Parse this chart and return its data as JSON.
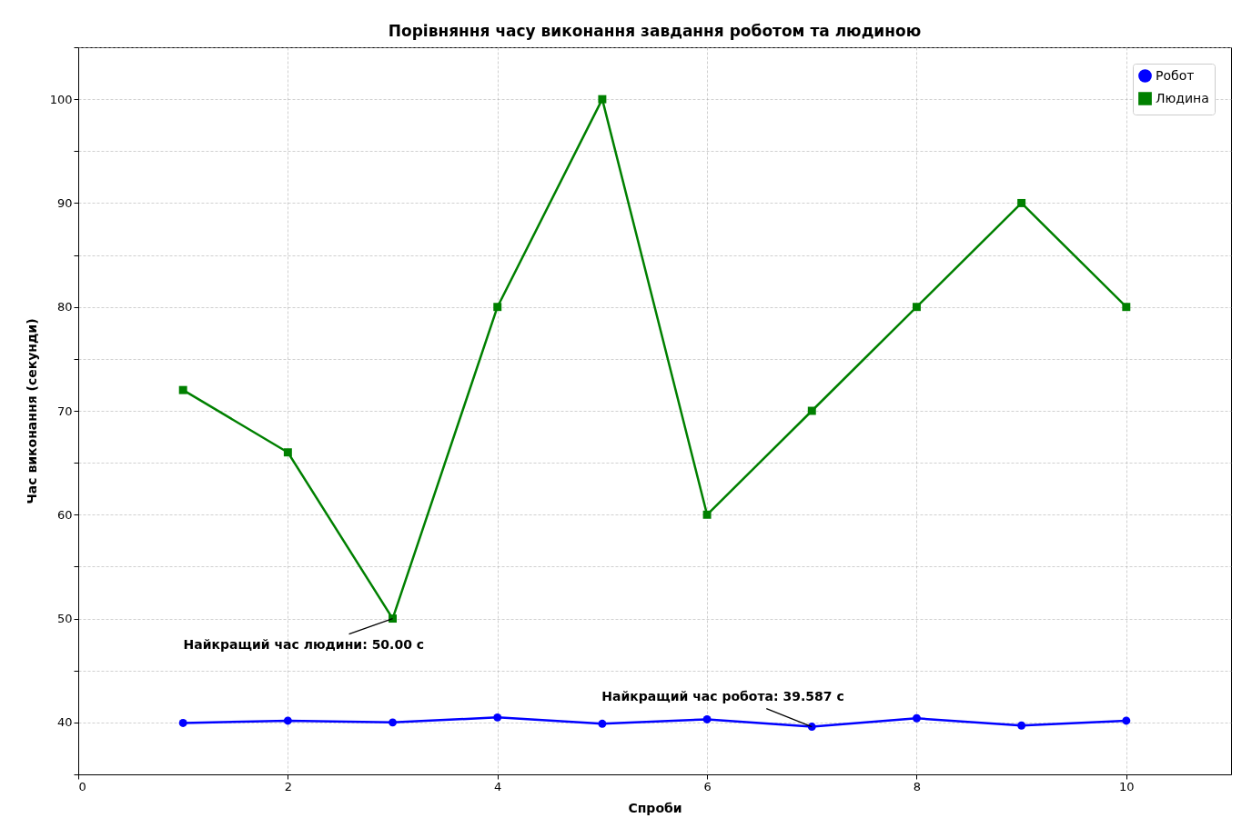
{
  "chart_data": {
    "type": "line",
    "title": "Порівняння часу виконання завдання роботом та людиною",
    "xlabel": "Спроби",
    "ylabel": "Час виконання (секунди)",
    "x": [
      1,
      2,
      3,
      4,
      5,
      6,
      7,
      8,
      9,
      10
    ],
    "series": [
      {
        "name": "Робот",
        "color": "#0000ff",
        "marker": "circle",
        "values": [
          39.95,
          40.17,
          40.0,
          40.48,
          39.87,
          40.3,
          39.587,
          40.4,
          39.7,
          40.17
        ]
      },
      {
        "name": "Людина",
        "color": "#008000",
        "marker": "square",
        "values": [
          72,
          66,
          50,
          80,
          100,
          60,
          70,
          80,
          90,
          80
        ]
      }
    ],
    "xlim": [
      0,
      11
    ],
    "xticks": [
      0,
      2,
      4,
      6,
      8,
      10
    ],
    "ylim": [
      35,
      105
    ],
    "yticks": [
      {
        "value": 35,
        "label": null
      },
      40,
      {
        "value": 45,
        "label": null
      },
      50,
      {
        "value": 55,
        "label": null
      },
      60,
      {
        "value": 65,
        "label": null
      },
      70,
      {
        "value": 75,
        "label": null
      },
      80,
      {
        "value": 85,
        "label": null
      },
      90,
      {
        "value": 95,
        "label": null
      },
      100,
      {
        "value": 105,
        "label": null
      }
    ],
    "grid": true,
    "legend": "top right",
    "line_style": "solid",
    "annotations": [
      {
        "text": "Найкращий час людини: 50.00 с",
        "x": 3,
        "y": 50
      },
      {
        "text": "Найкращий час робота: 39.587 с",
        "x": 7,
        "y": 39.587
      }
    ]
  }
}
